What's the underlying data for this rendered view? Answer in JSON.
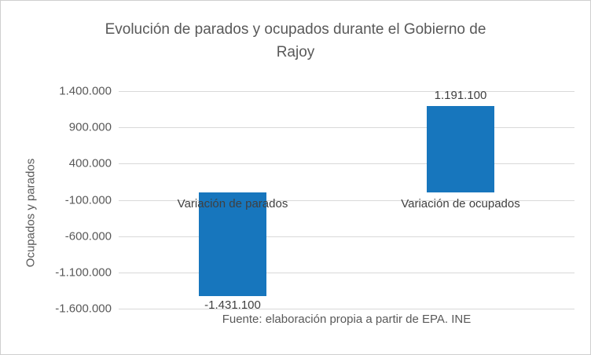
{
  "chart_data": {
    "type": "bar",
    "title": "Evolución de parados y ocupados durante el Gobierno de Rajoy",
    "ylabel": "Ocupados y parados",
    "categories": [
      "Variación de parados",
      "Variación de ocupados"
    ],
    "values": [
      -1431100,
      1191100
    ],
    "data_labels": [
      "-1.431.100",
      "1.191.100"
    ],
    "yticks": [
      1400000,
      900000,
      400000,
      -100000,
      -600000,
      -1100000,
      -1600000
    ],
    "ytick_labels": [
      "1.400.000",
      "900.000",
      "400.000",
      "-100.000",
      "-600.000",
      "-1.100.000",
      "-1.600.000"
    ],
    "ylim": [
      -1600000,
      1400000
    ],
    "bar_color": "#1776bd",
    "gridline_color": "#d9d9d9",
    "text_color": "#595959",
    "legend": "none",
    "grid": true,
    "source": "Fuente: elaboración propia a partir de EPA. INE"
  }
}
